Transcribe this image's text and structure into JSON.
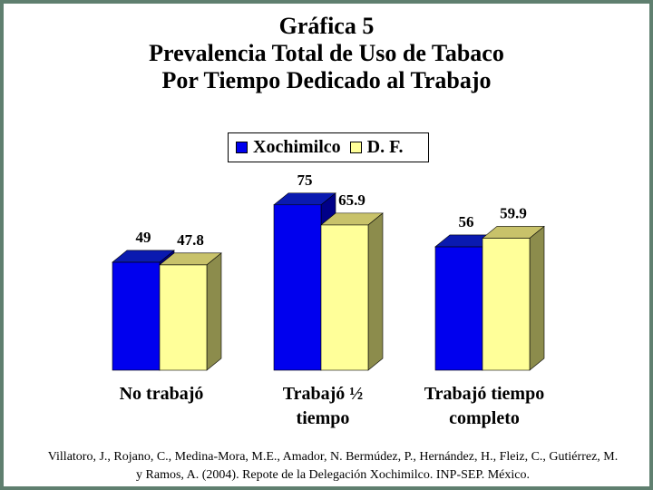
{
  "chart_data": {
    "type": "bar",
    "title": [
      "Gráfica 5",
      "Prevalencia Total de Uso de Tabaco",
      "Por Tiempo Dedicado al Trabajo"
    ],
    "categories": [
      [
        "No trabajó"
      ],
      [
        "Trabajó ½",
        "tiempo"
      ],
      [
        "Trabajó tiempo",
        "completo"
      ]
    ],
    "series": [
      {
        "name": "Xochimilco",
        "values": [
          49,
          75,
          56
        ],
        "labels": [
          "49",
          "75",
          "56"
        ],
        "color": "#0000ee",
        "top_color": "#0a1ab0",
        "side_color": "#000088"
      },
      {
        "name": "D. F.",
        "values": [
          47.8,
          65.9,
          59.9
        ],
        "labels": [
          "47.8",
          "65.9",
          "59.9"
        ],
        "color": "#ffff99",
        "top_color": "#c8c26a",
        "side_color": "#8c8c4c"
      }
    ],
    "ylim": [
      0,
      100
    ],
    "legend_position": "top-center",
    "grid": false,
    "style": "3d-bar"
  },
  "source": "Villatoro, J., Rojano, C., Medina-Mora, M.E., Amador, N. Bermúdez, P., Hernández, H., Fleiz, C., Gutiérrez, M. y Ramos, A. (2004). Repote de la Delegación Xochimilco. INP-SEP. México.",
  "colors": {
    "frame": "#5f7f6f"
  }
}
